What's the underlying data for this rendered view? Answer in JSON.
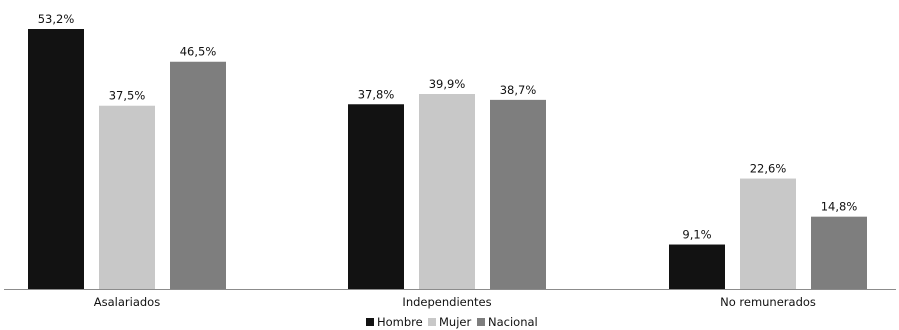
{
  "chart_data": {
    "type": "bar",
    "categories": [
      "Asalariados",
      "Independientes",
      "No remunerados"
    ],
    "series": [
      {
        "name": "Hombre",
        "color": "#121212",
        "values": [
          53.2,
          37.8,
          9.1
        ],
        "labels": [
          "53,2%",
          "37,8%",
          "9,1%"
        ]
      },
      {
        "name": "Mujer",
        "color": "#c8c8c8",
        "values": [
          37.5,
          39.9,
          22.6
        ],
        "labels": [
          "37,5%",
          "39,9%",
          "22,6%"
        ]
      },
      {
        "name": "Nacional",
        "color": "#7e7e7e",
        "values": [
          46.5,
          38.7,
          14.8
        ],
        "labels": [
          "46,5%",
          "38,7%",
          "14,8%"
        ]
      }
    ],
    "ylim": [
      0,
      53.2
    ],
    "legend_position": "bottom",
    "grid": false,
    "axis_color": "#8c8c8c"
  }
}
